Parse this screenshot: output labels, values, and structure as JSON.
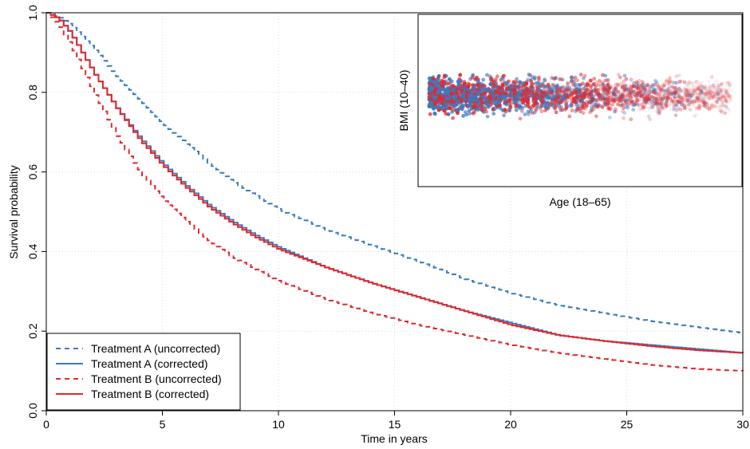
{
  "chart_data": [
    {
      "type": "line",
      "xlabel": "Time in years",
      "ylabel": "Survival probability",
      "xlim": [
        0,
        30
      ],
      "ylim": [
        0,
        1
      ],
      "xticks": [
        "0",
        "5",
        "10",
        "15",
        "20",
        "25",
        "30"
      ],
      "yticks": [
        "0.0",
        "0.2",
        "0.4",
        "0.6",
        "0.8",
        "1.0"
      ],
      "grid": true,
      "legend_position": "bottom-left",
      "series": [
        {
          "name": "Treatment A (uncorrected)",
          "color": "#3a7bbf",
          "dash": "dashed",
          "x": [
            0,
            0.5,
            1,
            1.5,
            2,
            3,
            4,
            5,
            6,
            7,
            8,
            9,
            10,
            12,
            14,
            16,
            18,
            20,
            22,
            24,
            26,
            28,
            30
          ],
          "y": [
            1.0,
            0.99,
            0.97,
            0.94,
            0.91,
            0.84,
            0.78,
            0.72,
            0.67,
            0.62,
            0.575,
            0.54,
            0.505,
            0.455,
            0.415,
            0.375,
            0.33,
            0.295,
            0.265,
            0.245,
            0.225,
            0.21,
            0.195
          ]
        },
        {
          "name": "Treatment A (corrected)",
          "color": "#3a7bbf",
          "dash": "solid",
          "x": [
            0,
            0.5,
            1,
            1.5,
            2,
            3,
            4,
            5,
            6,
            7,
            8,
            9,
            10,
            12,
            14,
            16,
            18,
            20,
            22,
            24,
            26,
            28,
            30
          ],
          "y": [
            1.0,
            0.985,
            0.95,
            0.9,
            0.85,
            0.76,
            0.685,
            0.62,
            0.565,
            0.515,
            0.475,
            0.44,
            0.41,
            0.36,
            0.32,
            0.285,
            0.25,
            0.22,
            0.19,
            0.175,
            0.165,
            0.155,
            0.145
          ]
        },
        {
          "name": "Treatment B (uncorrected)",
          "color": "#e0282e",
          "dash": "dashed",
          "x": [
            0,
            0.5,
            1,
            1.5,
            2,
            3,
            4,
            5,
            6,
            7,
            8,
            9,
            10,
            12,
            14,
            16,
            18,
            20,
            22,
            24,
            26,
            28,
            30
          ],
          "y": [
            1.0,
            0.97,
            0.92,
            0.86,
            0.8,
            0.69,
            0.6,
            0.53,
            0.475,
            0.425,
            0.385,
            0.355,
            0.325,
            0.28,
            0.245,
            0.215,
            0.19,
            0.165,
            0.145,
            0.13,
            0.115,
            0.105,
            0.1
          ]
        },
        {
          "name": "Treatment B (corrected)",
          "color": "#e0282e",
          "dash": "solid",
          "x": [
            0,
            0.5,
            1,
            1.5,
            2,
            3,
            4,
            5,
            6,
            7,
            8,
            9,
            10,
            12,
            14,
            16,
            18,
            20,
            22,
            24,
            26,
            28,
            30
          ],
          "y": [
            1.0,
            0.985,
            0.95,
            0.9,
            0.85,
            0.76,
            0.68,
            0.615,
            0.56,
            0.51,
            0.47,
            0.435,
            0.405,
            0.36,
            0.32,
            0.285,
            0.25,
            0.215,
            0.19,
            0.175,
            0.162,
            0.152,
            0.145
          ]
        }
      ]
    },
    {
      "type": "scatter",
      "xlabel": "Age (18–65)",
      "ylabel": "BMI (10–40)",
      "xlim": [
        18,
        65
      ],
      "ylim": [
        10,
        40
      ],
      "series": [
        {
          "name": "Treatment A",
          "color": "#3a7bbf"
        },
        {
          "name": "Treatment B",
          "color": "#e0282e"
        }
      ]
    }
  ]
}
